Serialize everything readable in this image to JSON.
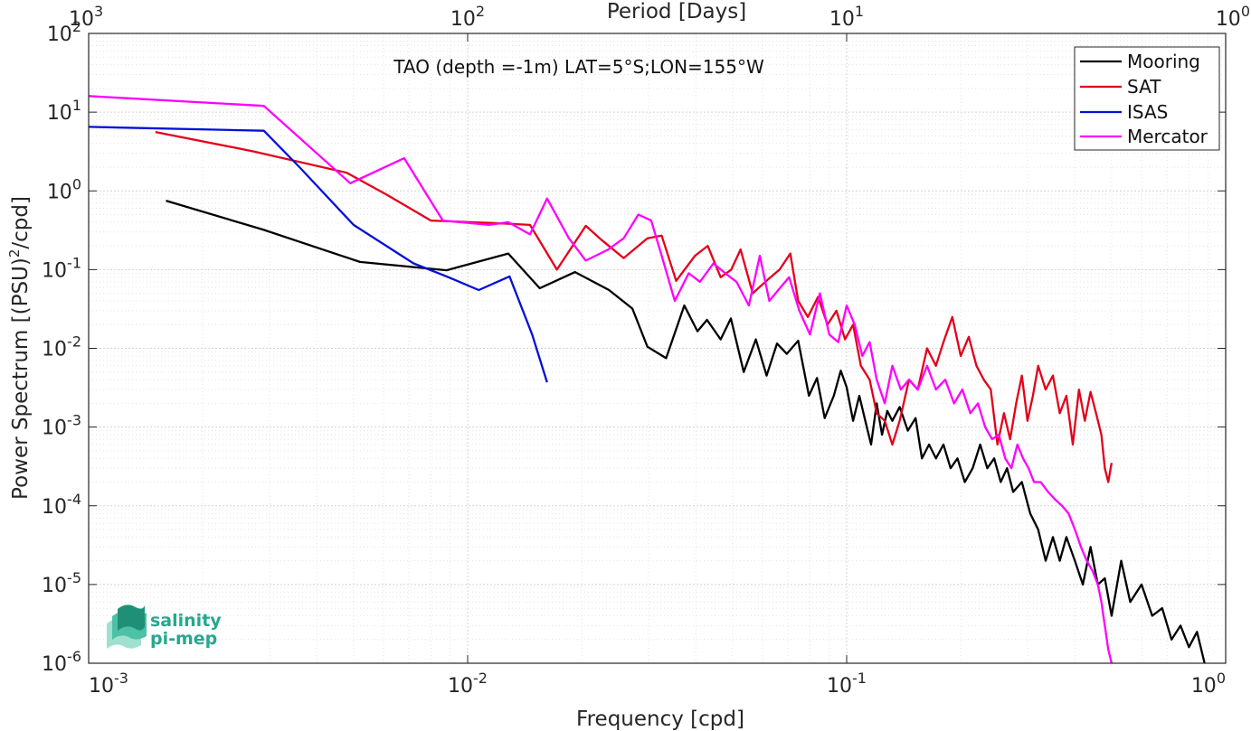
{
  "chart_data": {
    "type": "line",
    "title": "TAO (depth =-1m) LAT=5°S;LON=155°W",
    "xlabel": "Frequency [cpd]",
    "ylabel": "Power Spectrum [(PSU)",
    "ylabel_sup": "2",
    "ylabel_tail": "/cpd]",
    "top_xlabel": "Period [Days]",
    "xscale": "log",
    "yscale": "log",
    "xlim": [
      0.001,
      1
    ],
    "ylim": [
      1e-06,
      100
    ],
    "grid": "on (major and minor, dotted)",
    "legend_placement": "top-right",
    "x_ticks": [
      {
        "base": "10",
        "exp": "-3"
      },
      {
        "base": "10",
        "exp": "-2"
      },
      {
        "base": "10",
        "exp": "-1"
      },
      {
        "base": "10",
        "exp": "0"
      }
    ],
    "y_ticks": [
      {
        "base": "10",
        "exp": "2"
      },
      {
        "base": "10",
        "exp": "1"
      },
      {
        "base": "10",
        "exp": "0"
      },
      {
        "base": "10",
        "exp": "-1"
      },
      {
        "base": "10",
        "exp": "-2"
      },
      {
        "base": "10",
        "exp": "-3"
      },
      {
        "base": "10",
        "exp": "-4"
      },
      {
        "base": "10",
        "exp": "-5"
      },
      {
        "base": "10",
        "exp": "-6"
      }
    ],
    "top_ticks": [
      {
        "base": "10",
        "exp": "3"
      },
      {
        "base": "10",
        "exp": "2"
      },
      {
        "base": "10",
        "exp": "1"
      },
      {
        "base": "10",
        "exp": "0"
      }
    ],
    "series": [
      {
        "name": "Mooring",
        "color": "#000000",
        "points": [
          [
            0.0016,
            0.75
          ],
          [
            0.0029,
            0.32
          ],
          [
            0.0052,
            0.125
          ],
          [
            0.0088,
            0.098
          ],
          [
            0.0128,
            0.16
          ],
          [
            0.0155,
            0.058
          ],
          [
            0.0192,
            0.093
          ],
          [
            0.0236,
            0.055
          ],
          [
            0.0272,
            0.032
          ],
          [
            0.0298,
            0.0105
          ],
          [
            0.0334,
            0.0075
          ],
          [
            0.0373,
            0.035
          ],
          [
            0.0404,
            0.0165
          ],
          [
            0.0428,
            0.023
          ],
          [
            0.0465,
            0.013
          ],
          [
            0.0495,
            0.024
          ],
          [
            0.0535,
            0.005
          ],
          [
            0.0576,
            0.013
          ],
          [
            0.0615,
            0.0045
          ],
          [
            0.0655,
            0.0115
          ],
          [
            0.0695,
            0.0085
          ],
          [
            0.0745,
            0.0125
          ],
          [
            0.0795,
            0.0025
          ],
          [
            0.0835,
            0.0042
          ],
          [
            0.0875,
            0.0013
          ],
          [
            0.0925,
            0.0025
          ],
          [
            0.0965,
            0.0052
          ],
          [
            0.1,
            0.0032
          ],
          [
            0.104,
            0.0012
          ],
          [
            0.108,
            0.0025
          ],
          [
            0.112,
            0.0012
          ],
          [
            0.116,
            0.0006
          ],
          [
            0.12,
            0.002
          ],
          [
            0.124,
            0.0008
          ],
          [
            0.128,
            0.0016
          ],
          [
            0.132,
            0.0012
          ],
          [
            0.138,
            0.0018
          ],
          [
            0.145,
            0.0009
          ],
          [
            0.152,
            0.0013
          ],
          [
            0.158,
            0.0004
          ],
          [
            0.165,
            0.0006
          ],
          [
            0.172,
            0.0004
          ],
          [
            0.18,
            0.0006
          ],
          [
            0.188,
            0.0003
          ],
          [
            0.196,
            0.0004
          ],
          [
            0.205,
            0.0002
          ],
          [
            0.215,
            0.0003
          ],
          [
            0.225,
            0.0006
          ],
          [
            0.235,
            0.0003
          ],
          [
            0.245,
            0.0004
          ],
          [
            0.255,
            0.0002
          ],
          [
            0.265,
            0.0003
          ],
          [
            0.275,
            0.00015
          ],
          [
            0.29,
            0.0002
          ],
          [
            0.305,
            8e-05
          ],
          [
            0.32,
            5e-05
          ],
          [
            0.335,
            2e-05
          ],
          [
            0.35,
            4e-05
          ],
          [
            0.365,
            2e-05
          ],
          [
            0.38,
            4e-05
          ],
          [
            0.4,
            2e-05
          ],
          [
            0.42,
            1e-05
          ],
          [
            0.44,
            3e-05
          ],
          [
            0.46,
            1e-05
          ],
          [
            0.48,
            1.2e-05
          ],
          [
            0.5,
            4e-06
          ],
          [
            0.53,
            2e-05
          ],
          [
            0.56,
            6e-06
          ],
          [
            0.6,
            1e-05
          ],
          [
            0.64,
            4e-06
          ],
          [
            0.68,
            5e-06
          ],
          [
            0.72,
            2e-06
          ],
          [
            0.76,
            3e-06
          ],
          [
            0.8,
            1.6e-06
          ],
          [
            0.84,
            2.5e-06
          ],
          [
            0.88,
            1e-06
          ]
        ]
      },
      {
        "name": "SAT",
        "color": "#e4001a",
        "points": [
          [
            0.0015,
            5.6
          ],
          [
            0.0027,
            3.2
          ],
          [
            0.0048,
            1.7
          ],
          [
            0.0061,
            0.9
          ],
          [
            0.008,
            0.42
          ],
          [
            0.0118,
            0.39
          ],
          [
            0.0146,
            0.37
          ],
          [
            0.0172,
            0.1
          ],
          [
            0.0205,
            0.36
          ],
          [
            0.0225,
            0.24
          ],
          [
            0.0258,
            0.14
          ],
          [
            0.0298,
            0.25
          ],
          [
            0.0325,
            0.27
          ],
          [
            0.0355,
            0.072
          ],
          [
            0.0398,
            0.15
          ],
          [
            0.043,
            0.2
          ],
          [
            0.0465,
            0.08
          ],
          [
            0.0496,
            0.1
          ],
          [
            0.0525,
            0.18
          ],
          [
            0.0565,
            0.05
          ],
          [
            0.062,
            0.075
          ],
          [
            0.0665,
            0.1
          ],
          [
            0.071,
            0.16
          ],
          [
            0.0745,
            0.04
          ],
          [
            0.079,
            0.025
          ],
          [
            0.084,
            0.045
          ],
          [
            0.089,
            0.02
          ],
          [
            0.094,
            0.03
          ],
          [
            0.099,
            0.013
          ],
          [
            0.104,
            0.02
          ],
          [
            0.109,
            0.006
          ],
          [
            0.115,
            0.004
          ],
          [
            0.12,
            0.0015
          ],
          [
            0.126,
            0.0012
          ],
          [
            0.132,
            0.0006
          ],
          [
            0.138,
            0.0012
          ],
          [
            0.146,
            0.004
          ],
          [
            0.154,
            0.003
          ],
          [
            0.163,
            0.01
          ],
          [
            0.172,
            0.006
          ],
          [
            0.18,
            0.012
          ],
          [
            0.19,
            0.025
          ],
          [
            0.2,
            0.008
          ],
          [
            0.21,
            0.014
          ],
          [
            0.22,
            0.006
          ],
          [
            0.23,
            0.004
          ],
          [
            0.24,
            0.003
          ],
          [
            0.25,
            0.0006
          ],
          [
            0.26,
            0.0015
          ],
          [
            0.27,
            0.0007
          ],
          [
            0.28,
            0.002
          ],
          [
            0.29,
            0.0045
          ],
          [
            0.3,
            0.0012
          ],
          [
            0.31,
            0.0025
          ],
          [
            0.32,
            0.006
          ],
          [
            0.335,
            0.003
          ],
          [
            0.35,
            0.0045
          ],
          [
            0.365,
            0.0015
          ],
          [
            0.38,
            0.0025
          ],
          [
            0.395,
            0.0006
          ],
          [
            0.41,
            0.003
          ],
          [
            0.425,
            0.0012
          ],
          [
            0.44,
            0.0028
          ],
          [
            0.455,
            0.0015
          ],
          [
            0.47,
            0.0008
          ],
          [
            0.48,
            0.0003
          ],
          [
            0.49,
            0.0002
          ],
          [
            0.5,
            0.00035
          ]
        ]
      },
      {
        "name": "ISAS",
        "color": "#0010d8",
        "points": [
          [
            0.001,
            6.5
          ],
          [
            0.0029,
            5.8
          ],
          [
            0.0036,
            2.0
          ],
          [
            0.005,
            0.37
          ],
          [
            0.0072,
            0.12
          ],
          [
            0.0088,
            0.082
          ],
          [
            0.0107,
            0.055
          ],
          [
            0.0129,
            0.082
          ],
          [
            0.0148,
            0.015
          ],
          [
            0.0162,
            0.0037
          ]
        ]
      },
      {
        "name": "Mercator",
        "color": "#ff00ff",
        "points": [
          [
            0.001,
            16
          ],
          [
            0.0029,
            12
          ],
          [
            0.0049,
            1.25
          ],
          [
            0.0068,
            2.6
          ],
          [
            0.0086,
            0.42
          ],
          [
            0.0114,
            0.37
          ],
          [
            0.0128,
            0.4
          ],
          [
            0.0146,
            0.28
          ],
          [
            0.0162,
            0.8
          ],
          [
            0.0185,
            0.25
          ],
          [
            0.0205,
            0.13
          ],
          [
            0.0235,
            0.18
          ],
          [
            0.0258,
            0.25
          ],
          [
            0.0282,
            0.5
          ],
          [
            0.0305,
            0.42
          ],
          [
            0.0325,
            0.15
          ],
          [
            0.0352,
            0.04
          ],
          [
            0.0383,
            0.09
          ],
          [
            0.041,
            0.07
          ],
          [
            0.0445,
            0.12
          ],
          [
            0.0478,
            0.09
          ],
          [
            0.0512,
            0.07
          ],
          [
            0.0552,
            0.035
          ],
          [
            0.059,
            0.15
          ],
          [
            0.0625,
            0.04
          ],
          [
            0.066,
            0.055
          ],
          [
            0.0705,
            0.08
          ],
          [
            0.075,
            0.03
          ],
          [
            0.08,
            0.015
          ],
          [
            0.085,
            0.05
          ],
          [
            0.09,
            0.015
          ],
          [
            0.095,
            0.012
          ],
          [
            0.1,
            0.035
          ],
          [
            0.105,
            0.02
          ],
          [
            0.11,
            0.008
          ],
          [
            0.115,
            0.012
          ],
          [
            0.12,
            0.004
          ],
          [
            0.126,
            0.002
          ],
          [
            0.132,
            0.006
          ],
          [
            0.139,
            0.003
          ],
          [
            0.146,
            0.004
          ],
          [
            0.154,
            0.003
          ],
          [
            0.163,
            0.006
          ],
          [
            0.172,
            0.003
          ],
          [
            0.182,
            0.004
          ],
          [
            0.192,
            0.002
          ],
          [
            0.202,
            0.003
          ],
          [
            0.212,
            0.0015
          ],
          [
            0.222,
            0.002
          ],
          [
            0.232,
            0.001
          ],
          [
            0.242,
            0.0007
          ],
          [
            0.252,
            0.0008
          ],
          [
            0.262,
            0.0004
          ],
          [
            0.272,
            0.0003
          ],
          [
            0.282,
            0.0006
          ],
          [
            0.292,
            0.0004
          ],
          [
            0.302,
            0.0003
          ],
          [
            0.312,
            0.0002
          ],
          [
            0.325,
            0.0002
          ],
          [
            0.34,
            0.00015
          ],
          [
            0.355,
            0.00012
          ],
          [
            0.37,
            0.0001
          ],
          [
            0.385,
            8e-05
          ],
          [
            0.4,
            5e-05
          ],
          [
            0.415,
            3e-05
          ],
          [
            0.43,
            2e-05
          ],
          [
            0.445,
            1.5e-05
          ],
          [
            0.46,
            1e-05
          ],
          [
            0.47,
            6e-06
          ],
          [
            0.48,
            3e-06
          ],
          [
            0.49,
            1.5e-06
          ],
          [
            0.5,
            1e-06
          ]
        ]
      }
    ]
  },
  "logo": {
    "line1": "salinity",
    "line2": "pi-mep"
  },
  "colors": {
    "axis": "#262626",
    "grid": "#d9d9d9",
    "logo": "#25a88f"
  }
}
